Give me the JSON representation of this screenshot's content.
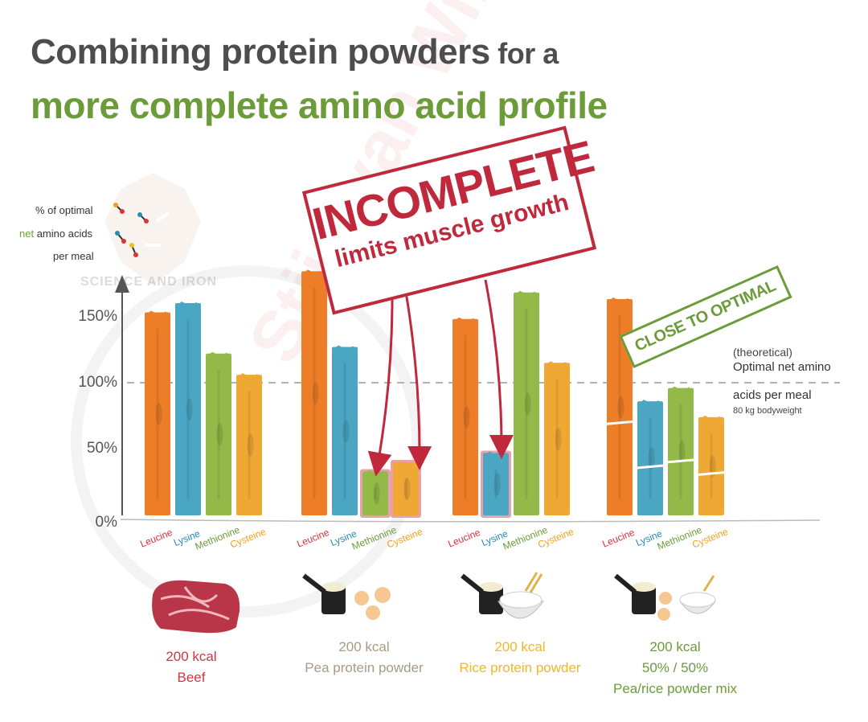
{
  "title": {
    "line1_first": "C",
    "line1_main": "ombining protein powders",
    "line1_tail": " for a",
    "line2": "more complete amino acid profile"
  },
  "y_legend": {
    "line1": "% of optimal",
    "line2_green": "net",
    "line2_rest": " amino acids",
    "line3": "per meal"
  },
  "watermark": {
    "logo_text": "SCIENCE AND IRON",
    "name": "Stijn van Willigen"
  },
  "optimal_line": {
    "label_line1": "(theoretical)",
    "label_line2": "Optimal net amino",
    "label_line3": "acids per meal",
    "label_line4": "80 kg bodyweight"
  },
  "stamp_incomplete": {
    "title": "INCOMPLETE",
    "subtitle": "limits muscle growth"
  },
  "stamp_optimal": {
    "text": "CLOSE TO OPTIMAL"
  },
  "foods": [
    {
      "kcal": "200 kcal",
      "name": "Beef",
      "name2": "",
      "color": "#d9333f"
    },
    {
      "kcal": "200 kcal",
      "name": "Pea protein powder",
      "name2": "",
      "color": "#a99a86"
    },
    {
      "kcal": "200 kcal",
      "name": "Rice protein powder",
      "name2": "",
      "color": "#f2b824"
    },
    {
      "kcal": "200 kcal",
      "name": "50% / 50%",
      "name2": "Pea/rice powder mix",
      "color": "#6c9b3a"
    }
  ],
  "chart_data": {
    "type": "bar",
    "ylabel": "% of optimal net amino acids per meal",
    "ylim": [
      0,
      180
    ],
    "yticks": [
      "0%",
      "50%",
      "100%",
      "150%"
    ],
    "ytick_values": [
      0,
      50,
      100,
      150
    ],
    "reference_line": 100,
    "categories": [
      "Leucine",
      "Lysine",
      "Methionine",
      "Cysteine"
    ],
    "category_colors": [
      "#d9333f",
      "#2a8ab8",
      "#6c9b3a",
      "#f0a020"
    ],
    "bar_colors": [
      "#ee7d28",
      "#4aa6c2",
      "#93b948",
      "#f0a835"
    ],
    "series": [
      {
        "name": "Beef",
        "values": [
          153,
          160,
          122,
          106
        ]
      },
      {
        "name": "Pea protein powder",
        "values": [
          184,
          127,
          33,
          40
        ]
      },
      {
        "name": "Rice protein powder",
        "values": [
          148,
          47,
          168,
          115
        ]
      },
      {
        "name": "Pea/rice powder mix",
        "values": [
          163,
          86,
          96,
          74
        ]
      }
    ],
    "highlighted": [
      {
        "group": 1,
        "bar": 2
      },
      {
        "group": 1,
        "bar": 3
      },
      {
        "group": 2,
        "bar": 1
      }
    ]
  }
}
